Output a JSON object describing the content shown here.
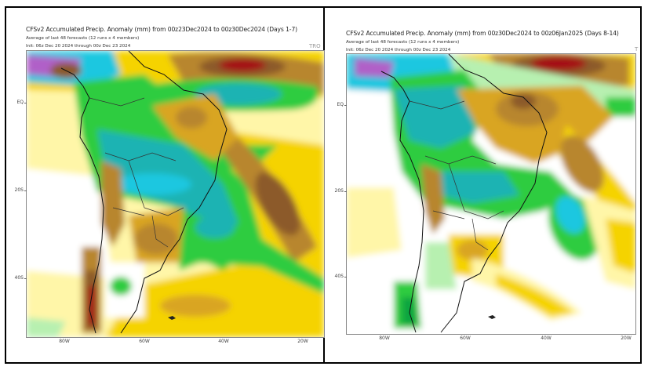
{
  "panels": [
    {
      "title": "CFSv2 Accumulated Precip. Anomaly (mm) from 00z23Dec2024 to 00z30Dec2024 (Days 1-7)",
      "subtitle": "Average of last 48 forecasts (12 runs x 4 members)",
      "init": "Init: 06z Dec 20 2024 through 00z Dec 23 2024",
      "corner_tag": "TRO",
      "y_ticks": [
        "EQ",
        "20S",
        "40S"
      ],
      "x_ticks": [
        "80W",
        "60W",
        "40W",
        "20W"
      ]
    },
    {
      "title": "CFSv2 Accumulated Precip. Anomaly (mm) from 00z30Dec2024 to 00z06Jan2025 (Days 8-14)",
      "subtitle": "Average of last 48 forecasts (12 runs x 4 members)",
      "init": "Init: 06z Dec 20 2024 through 00z Dec 23 2024",
      "corner_tag": "T",
      "y_ticks": [
        "EQ",
        "20S",
        "40S"
      ],
      "x_ticks": [
        "80W",
        "60W",
        "40W",
        "20W"
      ]
    }
  ],
  "palette": {
    "dry_strong": "#a50f15",
    "dry_brown": "#8c5a2b",
    "dry_tan": "#b8862e",
    "dry_gold": "#d9a521",
    "dry_yellow": "#f5d300",
    "dry_pale": "#fff6a8",
    "wet_pale": "#b7f0b0",
    "wet_green": "#2ecc40",
    "wet_dark": "#10a540",
    "wet_teal": "#1fb3b3",
    "wet_cyan": "#1cc7e0",
    "wet_purple": "#b060c8"
  }
}
